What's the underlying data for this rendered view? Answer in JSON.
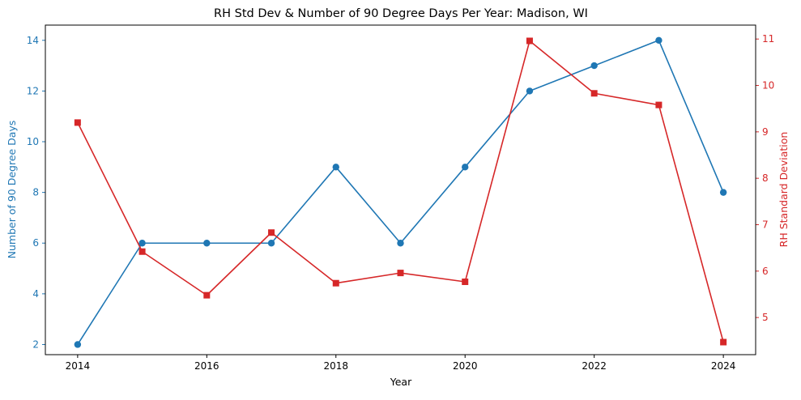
{
  "chart_data": {
    "type": "line",
    "title": "RH Std Dev & Number of 90 Degree Days Per Year: Madison, WI",
    "xlabel": "Year",
    "ylabel_left": "Number of 90 Degree Days",
    "ylabel_right": "RH Standard Deviation",
    "x": [
      2014,
      2015,
      2016,
      2017,
      2018,
      2019,
      2020,
      2021,
      2022,
      2023,
      2024
    ],
    "xlim": [
      2013.5,
      2024.5
    ],
    "xticks": [
      2014,
      2016,
      2018,
      2020,
      2022,
      2024
    ],
    "ylim_left": [
      1.6,
      14.6
    ],
    "yticks_left": [
      2,
      4,
      6,
      8,
      10,
      12,
      14
    ],
    "ylim_right": [
      4.2,
      11.3
    ],
    "yticks_right": [
      5,
      6,
      7,
      8,
      9,
      10,
      11
    ],
    "grid": false,
    "series": [
      {
        "values": [
          2,
          6,
          6,
          6,
          9,
          6,
          9,
          12,
          13,
          14,
          8
        ],
        "axis": "left",
        "color": "#1f77b4",
        "marker": "circle"
      },
      {
        "values": [
          9.2,
          6.42,
          5.48,
          6.83,
          5.74,
          5.96,
          5.77,
          10.96,
          9.83,
          9.58,
          4.47
        ],
        "axis": "right",
        "color": "#d62728",
        "marker": "square"
      }
    ]
  }
}
